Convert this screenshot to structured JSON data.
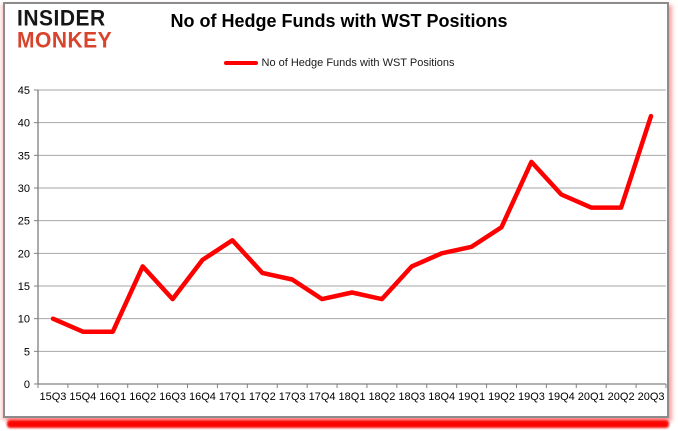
{
  "logo": {
    "line1": "INSIDER",
    "line2": "MONKEY"
  },
  "header": {
    "title": "No of Hedge Funds with WST Positions"
  },
  "legend": {
    "label": "No of Hedge Funds with WST Positions",
    "color": "#ff0000"
  },
  "chart_data": {
    "type": "line",
    "title": "No of Hedge Funds with WST Positions",
    "series_name": "No of Hedge Funds with WST Positions",
    "categories": [
      "15Q3",
      "15Q4",
      "16Q1",
      "16Q2",
      "16Q3",
      "16Q4",
      "17Q1",
      "17Q2",
      "17Q3",
      "17Q4",
      "18Q1",
      "18Q2",
      "18Q3",
      "18Q4",
      "19Q1",
      "19Q2",
      "19Q3",
      "19Q4",
      "20Q1",
      "20Q2",
      "20Q3"
    ],
    "values": [
      10,
      8,
      8,
      18,
      13,
      19,
      22,
      17,
      16,
      13,
      14,
      13,
      18,
      20,
      21,
      24,
      34,
      29,
      27,
      27,
      41
    ],
    "xlabel": "",
    "ylabel": "",
    "ylim": [
      0,
      45
    ],
    "ytick_step": 5,
    "grid": true,
    "legend_position": "top",
    "line_color": "#ff0000",
    "grid_color": "#a6a6a6",
    "axis_color": "#808080"
  },
  "colors": {
    "frame_border": "#8c8c8c",
    "bottom_bar": "#fa0400",
    "logo_insider": "#161616",
    "logo_monkey": "#d8432c"
  }
}
